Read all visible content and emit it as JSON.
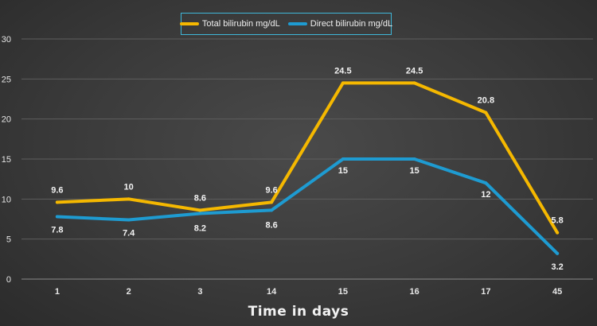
{
  "chart_data": {
    "type": "line",
    "categories": [
      "1",
      "2",
      "3",
      "14",
      "15",
      "16",
      "17",
      "45"
    ],
    "series": [
      {
        "name": "Total bilirubin mg/dL",
        "color": "#f5b800",
        "values": [
          9.6,
          10,
          8.6,
          9.6,
          24.5,
          24.5,
          20.8,
          5.8
        ],
        "labels": [
          "9.6",
          "10",
          "8.6",
          "9.6",
          "24.5",
          "24.5",
          "20.8",
          "5.8"
        ]
      },
      {
        "name": "Direct bilirubin mg/dL",
        "color": "#1e9bd1",
        "values": [
          7.8,
          7.4,
          8.2,
          8.6,
          15,
          15,
          12,
          3.2
        ],
        "labels": [
          "7.8",
          "7.4",
          "8.2",
          "8.6",
          "15",
          "15",
          "12",
          "3.2"
        ]
      }
    ],
    "yticks": [
      "0",
      "5",
      "10",
      "15",
      "20",
      "25",
      "30"
    ],
    "ylim": [
      0,
      30
    ],
    "xlabel": "Time in days",
    "ylabel": "",
    "grid": true,
    "legend_position": "top-center"
  }
}
